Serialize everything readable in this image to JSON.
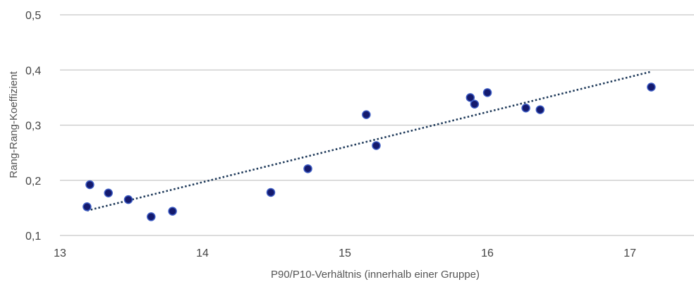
{
  "chart_data": {
    "type": "scatter",
    "xlabel": "P90/P10-Verhältnis (innerhalb einer Gruppe)",
    "ylabel": "Rang-Rang-Koeffizient",
    "xlim": [
      13,
      17.45
    ],
    "ylim": [
      0.1,
      0.5
    ],
    "xticks": [
      13,
      14,
      15,
      16,
      17
    ],
    "yticks": [
      0.1,
      0.2,
      0.3,
      0.4,
      0.5
    ],
    "xtick_labels": [
      "13",
      "14",
      "15",
      "16",
      "17"
    ],
    "ytick_labels": [
      "0,1",
      "0,2",
      "0,3",
      "0,4",
      "0,5"
    ],
    "grid": "horizontal",
    "points": [
      {
        "x": 13.19,
        "y": 0.152
      },
      {
        "x": 13.21,
        "y": 0.192
      },
      {
        "x": 13.34,
        "y": 0.177
      },
      {
        "x": 13.48,
        "y": 0.165
      },
      {
        "x": 13.64,
        "y": 0.134
      },
      {
        "x": 13.79,
        "y": 0.144
      },
      {
        "x": 14.48,
        "y": 0.178
      },
      {
        "x": 14.74,
        "y": 0.221
      },
      {
        "x": 15.15,
        "y": 0.319
      },
      {
        "x": 15.22,
        "y": 0.263
      },
      {
        "x": 15.88,
        "y": 0.35
      },
      {
        "x": 15.91,
        "y": 0.338
      },
      {
        "x": 16.0,
        "y": 0.359
      },
      {
        "x": 16.27,
        "y": 0.331
      },
      {
        "x": 16.37,
        "y": 0.328
      },
      {
        "x": 17.15,
        "y": 0.369
      }
    ],
    "trendline": {
      "style": "dotted",
      "x": [
        13.19,
        17.15
      ],
      "y": [
        0.145,
        0.397
      ]
    },
    "colors": {
      "marker_fill": "#141a6e",
      "marker_edge": "#3d5cc4",
      "trendline": "#1f3a5a",
      "grid": "#c8c8c8"
    }
  }
}
